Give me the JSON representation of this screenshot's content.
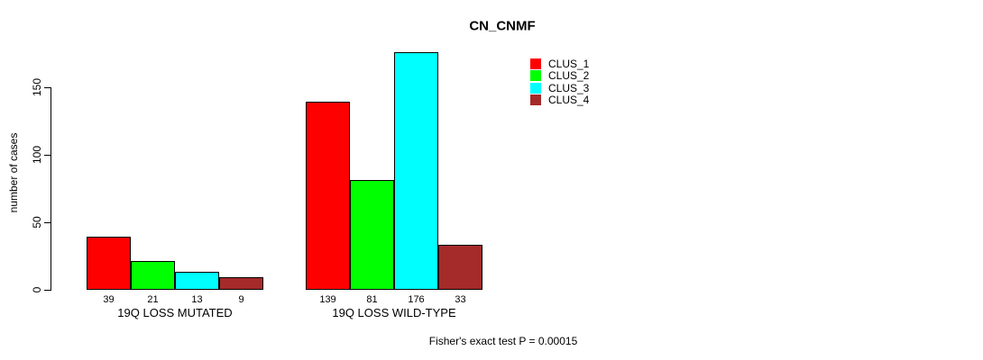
{
  "chart_data": {
    "type": "bar",
    "title": "CN_CNMF",
    "ylabel": "number of cases",
    "xlabel": "",
    "categories": [
      "19Q LOSS MUTATED",
      "19Q LOSS WILD-TYPE"
    ],
    "series": [
      {
        "name": "CLUS_1",
        "color": "#FF0000",
        "values": [
          39,
          139
        ]
      },
      {
        "name": "CLUS_2",
        "color": "#00FF00",
        "values": [
          21,
          81
        ]
      },
      {
        "name": "CLUS_3",
        "color": "#00FFFF",
        "values": [
          13,
          176
        ]
      },
      {
        "name": "CLUS_4",
        "color": "#A52A2A",
        "values": [
          9,
          33
        ]
      }
    ],
    "bar_value_labels": [
      [
        39,
        21,
        13,
        9
      ],
      [
        139,
        81,
        176,
        33
      ]
    ],
    "yticks": [
      0,
      50,
      100,
      150
    ],
    "ylim": [
      0,
      176
    ],
    "grid": false,
    "legend_position": "top-right",
    "legend_entries": [
      "CLUS_1",
      "CLUS_2",
      "CLUS_3",
      "CLUS_4"
    ],
    "annotation": "Fisher's exact test P = 0.00015",
    "axis_color": "#000000",
    "bar_border_color": "#000000",
    "background_color": "#FFFFFF"
  }
}
